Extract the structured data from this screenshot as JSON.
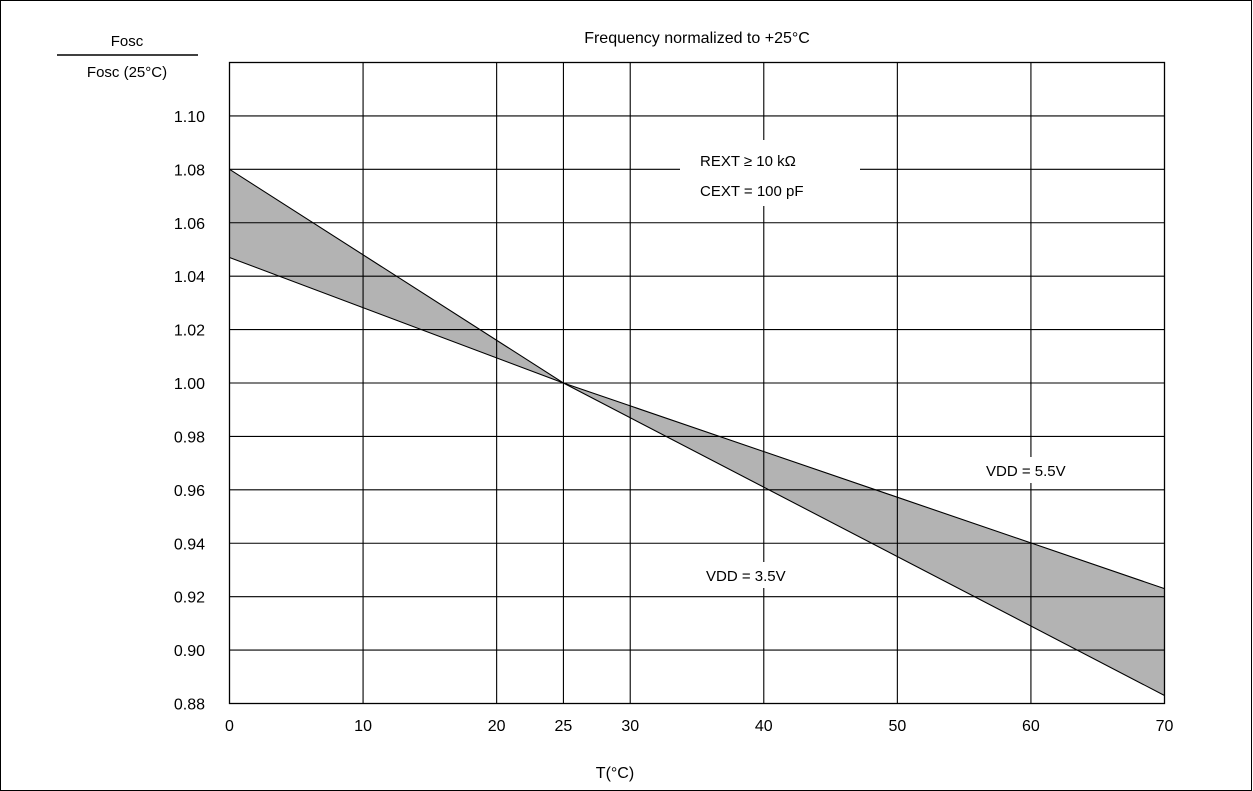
{
  "chart_data": {
    "type": "area",
    "title": "Frequency normalized to +25°C",
    "ylabel": {
      "numerator": "Fosc",
      "denominator": "Fosc (25°C)"
    },
    "xlabel": "T(°C)",
    "x_ticks": [
      0,
      10,
      20,
      25,
      30,
      40,
      50,
      60,
      70
    ],
    "y_ticks": [
      0.88,
      0.9,
      0.92,
      0.94,
      0.96,
      0.98,
      1.0,
      1.02,
      1.04,
      1.06,
      1.08,
      1.1
    ],
    "y_tick_labels": [
      "0.88",
      "0.90",
      "0.92",
      "0.94",
      "0.96",
      "0.98",
      "1.00",
      "1.02",
      "1.04",
      "1.06",
      "1.08",
      "1.10"
    ],
    "xlim": [
      0,
      70
    ],
    "ylim": [
      0.88,
      1.12
    ],
    "grid": true,
    "fill_color": "#b3b3b3",
    "series": [
      {
        "name": "VDD = 3.5V",
        "x": [
          0,
          25,
          70
        ],
        "y": [
          1.08,
          1.0,
          0.883
        ]
      },
      {
        "name": "VDD = 5.5V",
        "x": [
          0,
          25,
          70
        ],
        "y": [
          1.047,
          1.0,
          0.923
        ]
      }
    ],
    "annotations": {
      "conditions_line1": "REXT ≥ 10 kΩ",
      "conditions_line2": "CEXT = 100 pF",
      "label_5v5": "VDD = 5.5V",
      "label_3v5": "VDD = 3.5V"
    }
  }
}
